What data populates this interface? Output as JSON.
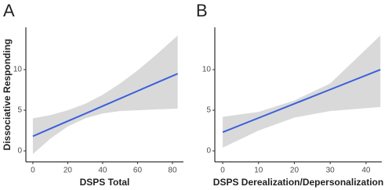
{
  "chart_data": [
    {
      "type": "line",
      "panel_label": "A",
      "x_label": "DSPS Total",
      "y_label": "Dissociative Responding",
      "xlim": [
        -4,
        86.3
      ],
      "xticks": [
        0,
        20,
        40,
        60,
        80
      ],
      "ylim": [
        -1.35,
        15.2
      ],
      "yticks": [
        0,
        5,
        10
      ],
      "x": [
        0,
        10,
        20,
        30,
        40,
        50,
        60,
        70,
        83
      ],
      "series": [
        {
          "color": "#3b5fdb",
          "band_color": "#d9d9d9",
          "values": [
            1.8,
            2.73,
            3.66,
            4.58,
            5.51,
            6.44,
            7.37,
            8.3,
            9.5
          ],
          "upper": [
            4.0,
            4.4,
            5.0,
            5.8,
            6.9,
            8.3,
            9.9,
            11.7,
            14.2
          ],
          "lower": [
            -0.4,
            1.5,
            3.0,
            4.0,
            4.6,
            4.9,
            5.0,
            5.1,
            5.2
          ]
        }
      ]
    },
    {
      "type": "line",
      "panel_label": "B",
      "x_label": "DSPS Derealization/Depersonalization",
      "xlim": [
        -2.2,
        44.4
      ],
      "xticks": [
        0,
        10,
        20,
        30,
        40
      ],
      "ylim": [
        -1.35,
        15.2
      ],
      "yticks": [
        0,
        5,
        10
      ],
      "x": [
        0,
        10,
        20,
        30,
        44
      ],
      "series": [
        {
          "color": "#3b5fdb",
          "band_color": "#d9d9d9",
          "values": [
            2.3,
            4.05,
            5.8,
            7.55,
            10.0
          ],
          "upper": [
            4.2,
            4.8,
            6.2,
            8.3,
            14.2
          ],
          "lower": [
            0.4,
            2.5,
            4.1,
            4.9,
            5.4
          ]
        }
      ]
    }
  ]
}
